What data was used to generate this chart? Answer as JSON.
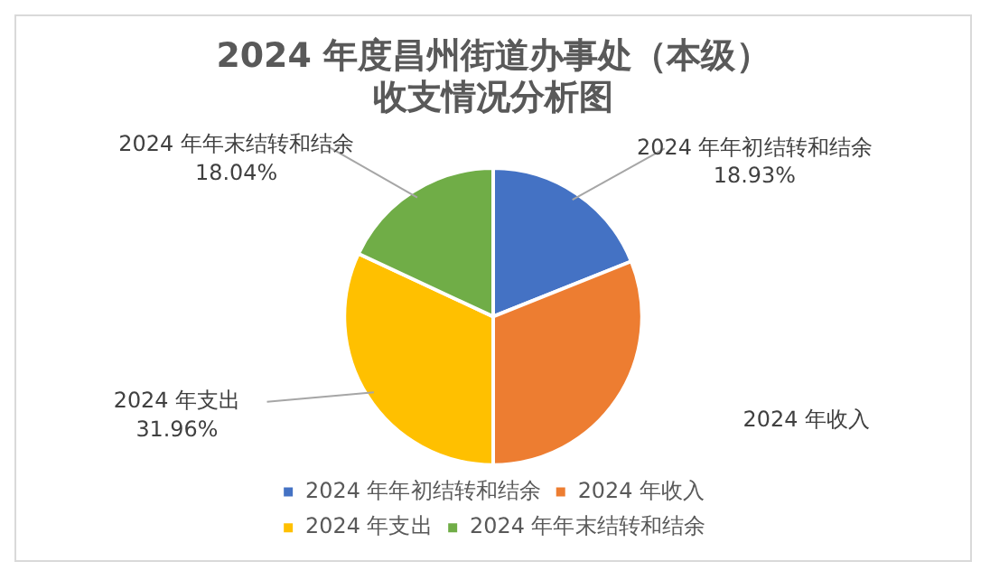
{
  "chart_data": {
    "type": "pie",
    "title": [
      "2024 年度昌州街道办事处（本级）",
      "收支情况分析图"
    ],
    "categories": [
      "2024 年年初结转和结余",
      "2024 年收入",
      "2024 年支出",
      "2024 年年末结转和结余"
    ],
    "values": [
      18.93,
      31.07,
      31.96,
      18.04
    ],
    "value_labels": [
      "18.93%",
      null,
      "31.96%",
      "18.04%"
    ],
    "colors": [
      "#4472c4",
      "#ed7d31",
      "#ffc000",
      "#70ad47"
    ],
    "legend": "bottom"
  }
}
